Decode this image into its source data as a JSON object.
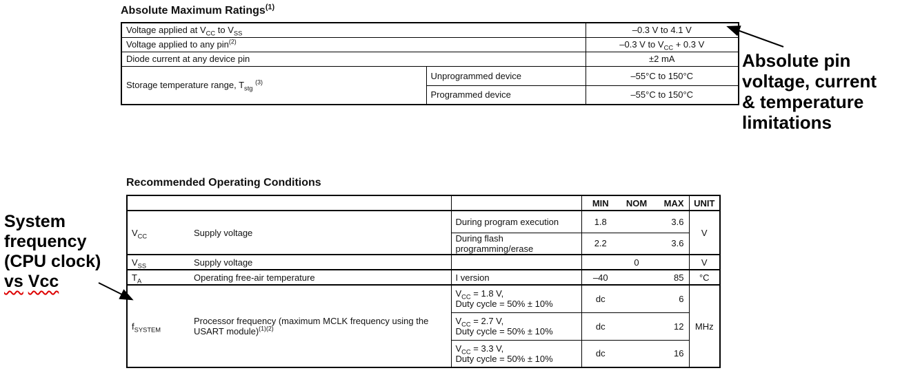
{
  "page": {
    "background": "#ffffff",
    "text_color": "#111111",
    "squiggle_color": "#dd0000"
  },
  "table1": {
    "title": "Absolute Maximum Ratings^(1)^",
    "rows": [
      {
        "param": "Voltage applied at V~CC~ to V~SS~",
        "value": "–0.3 V to 4.1 V"
      },
      {
        "param": "Voltage applied to any pin^(2)^",
        "value": "–0.3 V to V~CC~ + 0.3 V"
      },
      {
        "param": "Diode current at any device pin",
        "value": "±2 mA"
      },
      {
        "param": "Storage temperature range, T~stg~ ^(3)^",
        "sub": [
          {
            "cond": "Unprogrammed device",
            "value": "–55°C to 150°C"
          },
          {
            "cond": "Programmed device",
            "value": "–55°C to 150°C"
          }
        ]
      }
    ]
  },
  "table2": {
    "title": "Recommended Operating Conditions",
    "header": {
      "min": "MIN",
      "nom": "NOM",
      "max": "MAX",
      "unit": "UNIT"
    },
    "vcc": {
      "sym": "V~CC~",
      "param": "Supply voltage",
      "unit": "V",
      "sub": [
        {
          "cond": "During program execution",
          "min": "1.8",
          "max": "3.6"
        },
        {
          "cond": "During flash\nprogramming/erase",
          "min": "2.2",
          "max": "3.6"
        }
      ]
    },
    "vss": {
      "sym": "V~SS~",
      "param": "Supply voltage",
      "nom": "0",
      "unit": "V"
    },
    "ta": {
      "sym": "T~A~",
      "param": "Operating free-air temperature",
      "cond": "I version",
      "min": "–40",
      "max": "85",
      "unit": "°C"
    },
    "fsys": {
      "sym": "f~SYSTEM~",
      "param": "Processor frequency (maximum MCLK frequency using the USART module)^(1)(2)^",
      "unit": "MHz",
      "sub": [
        {
          "cond": "V~CC~ = 1.8 V,\nDuty cycle = 50% ± 10%",
          "min": "dc",
          "max": "6"
        },
        {
          "cond": "V~CC~ = 2.7 V,\nDuty cycle = 50% ± 10%",
          "min": "dc",
          "max": "12"
        },
        {
          "cond": "V~CC~ = 3.3 V,\nDuty cycle = 50% ± 10%",
          "min": "dc",
          "max": "16"
        }
      ]
    }
  },
  "notes": {
    "right": {
      "lines": [
        "Absolute pin",
        "voltage, current",
        "& temperature",
        "limitations"
      ]
    },
    "left": {
      "lines": [
        "System",
        "frequency",
        "(CPU clock)"
      ],
      "underlined_words": [
        "vs",
        "Vcc"
      ]
    }
  }
}
